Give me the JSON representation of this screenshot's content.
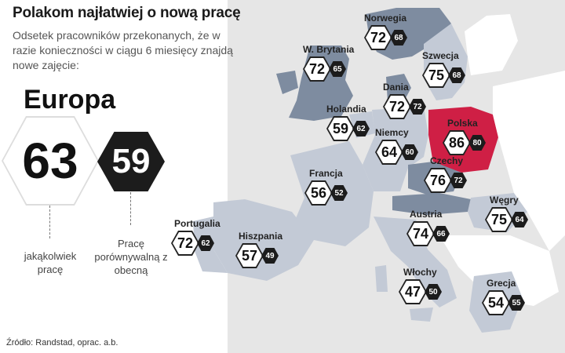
{
  "header": {
    "title": "Polakom najłatwiej o nową pracę",
    "subtitle": "Odsetek pracowników przekonanych, że w razie konieczności w ciągu 6 miesięcy znajdą nowe zajęcie:"
  },
  "europe": {
    "label": "Europa",
    "any_job": {
      "value": "63",
      "caption": "jakąkolwiek pracę"
    },
    "comparable_job": {
      "value": "59",
      "caption": "Pracę porównywalną z obecną"
    }
  },
  "countries": [
    {
      "name": "Norwegia",
      "any": "72",
      "comparable": "68"
    },
    {
      "name": "W. Brytania",
      "any": "72",
      "comparable": "65"
    },
    {
      "name": "Szwecja",
      "any": "75",
      "comparable": "68"
    },
    {
      "name": "Dania",
      "any": "72",
      "comparable": "72"
    },
    {
      "name": "Holandia",
      "any": "59",
      "comparable": "62"
    },
    {
      "name": "Polska",
      "any": "86",
      "comparable": "80"
    },
    {
      "name": "Niemcy",
      "any": "64",
      "comparable": "60"
    },
    {
      "name": "Czechy",
      "any": "76",
      "comparable": "72"
    },
    {
      "name": "Francja",
      "any": "56",
      "comparable": "52"
    },
    {
      "name": "Węgry",
      "any": "75",
      "comparable": "64"
    },
    {
      "name": "Portugalia",
      "any": "72",
      "comparable": "62"
    },
    {
      "name": "Hiszpania",
      "any": "57",
      "comparable": "49"
    },
    {
      "name": "Austria",
      "any": "74",
      "comparable": "66"
    },
    {
      "name": "Włochy",
      "any": "47",
      "comparable": "50"
    },
    {
      "name": "Grecja",
      "any": "54",
      "comparable": "55"
    }
  ],
  "source": "Źródło: Randstad, oprac. a.b.",
  "colors": {
    "land": "#c3cad6",
    "land_dark": "#7e8ca0",
    "highlight": "#cf1f45",
    "other_land": "#ffffff",
    "sea": "#e6e6e6"
  }
}
